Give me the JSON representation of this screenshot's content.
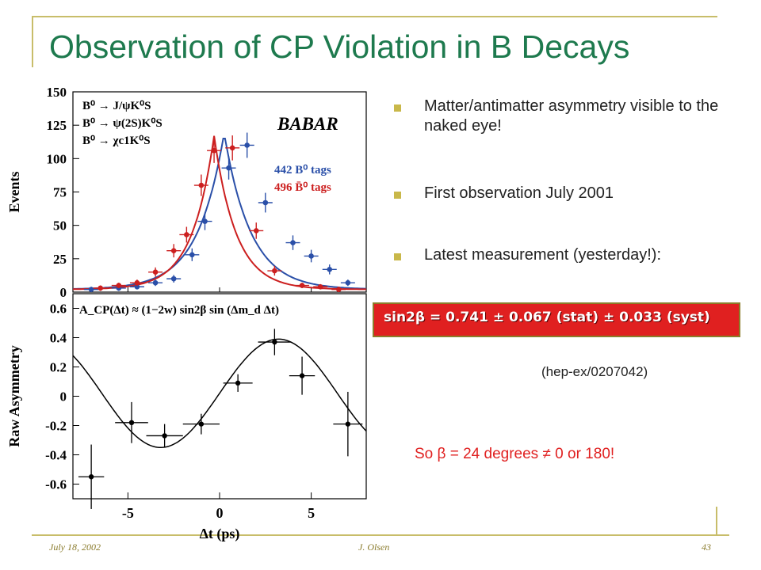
{
  "slide": {
    "title": "Observation of CP Violation in B Decays",
    "bullets": [
      "Matter/antimatter asymmetry visible to the naked eye!",
      "First observation July 2001",
      "Latest measurement (yesterday!):"
    ],
    "result": "sin2β = 0.741 ± 0.067 (stat) ± 0.033 (syst)",
    "reference": "(hep-ex/0207042)",
    "beta_note": "So β = 24 degrees ≠ 0 or 180!",
    "footer": {
      "date": "July 18, 2002",
      "author": "J. Olsen",
      "page": "43"
    },
    "colors": {
      "title": "#1e7a4e",
      "accent": "#c9b84a",
      "highlight_box": "#e02020",
      "frame": "#c8bd6a"
    }
  },
  "chart_data": [
    {
      "type": "scatter",
      "experiment_label": "BABAR",
      "ylabel": "Events",
      "ylim": [
        0,
        150
      ],
      "yticks": [
        0,
        25,
        50,
        75,
        100,
        125,
        150
      ],
      "xlim": [
        -8,
        8
      ],
      "decay_modes": [
        "B⁰ → J/ψK⁰S",
        "B⁰ → ψ(2S)K⁰S",
        "B⁰ → χc1K⁰S"
      ],
      "series": [
        {
          "name": "442 B⁰ tags",
          "color": "#2a4fa8",
          "x": [
            -7,
            -5.5,
            -4.5,
            -3.5,
            -2.5,
            -1.5,
            -0.8,
            0.5,
            1.5,
            2.5,
            4,
            5,
            6,
            7
          ],
          "y": [
            2,
            3,
            4,
            7,
            10,
            28,
            53,
            93,
            110,
            67,
            37,
            27,
            17,
            7
          ]
        },
        {
          "name": "496 B̄⁰ tags",
          "color": "#cc1f1f",
          "x": [
            -6.5,
            -5.5,
            -4.5,
            -3.5,
            -2.5,
            -1.8,
            -1,
            -0.3,
            0.7,
            2,
            3,
            4.5,
            5.5,
            6.5
          ],
          "y": [
            3,
            5,
            7,
            15,
            31,
            43,
            80,
            106,
            108,
            46,
            16,
            5,
            4,
            2
          ]
        }
      ]
    },
    {
      "type": "scatter",
      "ylabel": "Raw Asymmetry",
      "xlabel": "Δt (ps)",
      "formula": "A_CP(Δt) ≈ (1−2w) sin2β sin (Δm_d Δt)",
      "ylim": [
        -0.7,
        0.7
      ],
      "yticks": [
        -0.6,
        -0.4,
        -0.2,
        0,
        0.2,
        0.4,
        0.6
      ],
      "xlim": [
        -8,
        8
      ],
      "xticks": [
        -5,
        0,
        5
      ],
      "x": [
        -7,
        -4.8,
        -3,
        -1,
        1,
        3,
        4.5,
        7
      ],
      "y": [
        -0.55,
        -0.18,
        -0.27,
        -0.19,
        0.09,
        0.37,
        0.14,
        -0.19
      ]
    }
  ]
}
